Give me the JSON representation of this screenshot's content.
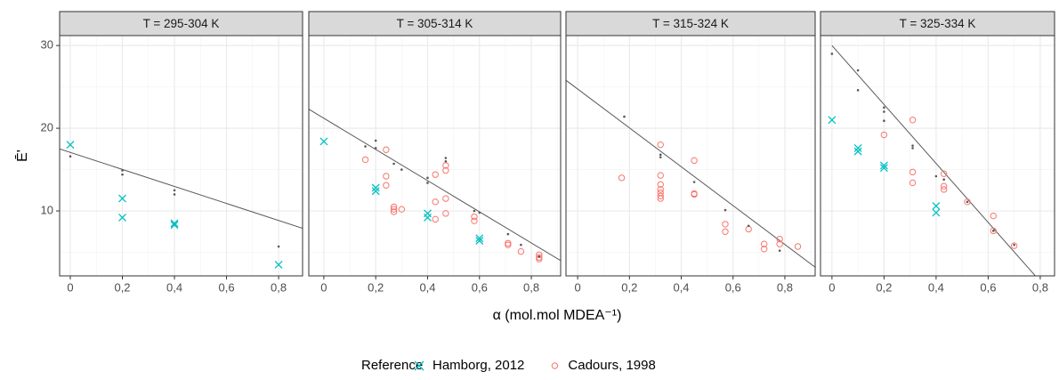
{
  "chart_data": [
    {
      "type": "scatter",
      "title": "T = 295-304 K",
      "xlim": [
        -0.041,
        0.892
      ],
      "ylim": [
        2.15,
        31.2
      ],
      "xticks": [
        {
          "value": 0,
          "label": "0"
        },
        {
          "value": 0.2,
          "label": "0,2"
        },
        {
          "value": 0.4,
          "label": "0,4"
        },
        {
          "value": 0.6,
          "label": "0,6"
        },
        {
          "value": 0.8,
          "label": "0,8"
        }
      ],
      "yticks": [
        10,
        20,
        30
      ],
      "grid": true,
      "series": [
        {
          "name": "Hamborg, 2012",
          "color": "#00BFC4",
          "marker": "x",
          "x": [
            0,
            0.2,
            0.2,
            0.4,
            0.4,
            0.8
          ],
          "values": [
            18.0,
            11.5,
            9.2,
            8.5,
            8.3,
            3.5
          ]
        },
        {
          "color": "#595959",
          "marker": "dot",
          "x": [
            0,
            0.2,
            0.2,
            0.4,
            0.4,
            0.8
          ],
          "values": [
            16.6,
            14.9,
            14.4,
            12.5,
            12.0,
            5.7
          ]
        }
      ],
      "fit_line": {
        "color": "#595959",
        "x": [
          -0.041,
          0.892
        ],
        "values": [
          17.5,
          7.9
        ]
      }
    },
    {
      "type": "scatter",
      "title": "T = 305-314 K",
      "xlim": [
        -0.058,
        0.913
      ],
      "ylim": [
        2.15,
        31.2
      ],
      "xticks": [
        {
          "value": 0,
          "label": "0"
        },
        {
          "value": 0.2,
          "label": "0,2"
        },
        {
          "value": 0.4,
          "label": "0,4"
        },
        {
          "value": 0.6,
          "label": "0,6"
        },
        {
          "value": 0.8,
          "label": "0,8"
        }
      ],
      "yticks": [
        10,
        20,
        30
      ],
      "grid": true,
      "series": [
        {
          "name": "Cadours, 1998",
          "color": "#F8766D",
          "marker": "circle",
          "x": [
            0.16,
            0.24,
            0.24,
            0.24,
            0.27,
            0.27,
            0.27,
            0.3,
            0.43,
            0.43,
            0.43,
            0.47,
            0.47,
            0.47,
            0.47,
            0.58,
            0.58,
            0.71,
            0.71,
            0.76,
            0.83,
            0.83,
            0.83
          ],
          "values": [
            16.2,
            17.4,
            14.2,
            13.1,
            10.5,
            10.2,
            9.9,
            10.2,
            14.4,
            11.1,
            9.0,
            15.5,
            14.9,
            11.5,
            9.7,
            9.3,
            8.8,
            6.1,
            5.9,
            5.1,
            4.7,
            4.4,
            4.2
          ]
        },
        {
          "name": "Hamborg, 2012",
          "color": "#00BFC4",
          "marker": "x",
          "x": [
            0,
            0.2,
            0.2,
            0.4,
            0.4,
            0.6,
            0.6
          ],
          "values": [
            18.4,
            12.8,
            12.4,
            9.7,
            9.2,
            6.7,
            6.4
          ]
        },
        {
          "color": "#595959",
          "marker": "dot",
          "x": [
            0.16,
            0.2,
            0.2,
            0.27,
            0.3,
            0.4,
            0.4,
            0.47,
            0.47,
            0.58,
            0.6,
            0.71,
            0.76,
            0.83
          ],
          "values": [
            17.8,
            18.5,
            17.6,
            15.7,
            15.0,
            14.0,
            13.4,
            16.4,
            16.0,
            10.0,
            9.8,
            7.2,
            5.9,
            4.5
          ]
        }
      ],
      "fit_line": {
        "color": "#595959",
        "x": [
          -0.058,
          0.913
        ],
        "values": [
          22.3,
          4.0
        ]
      }
    },
    {
      "type": "scatter",
      "title": "T = 315-324 K",
      "xlim": [
        -0.045,
        0.917
      ],
      "ylim": [
        2.15,
        31.2
      ],
      "xticks": [
        {
          "value": 0,
          "label": "0"
        },
        {
          "value": 0.2,
          "label": "0,2"
        },
        {
          "value": 0.4,
          "label": "0,4"
        },
        {
          "value": 0.6,
          "label": "0,6"
        },
        {
          "value": 0.8,
          "label": "0,8"
        }
      ],
      "yticks": [
        10,
        20,
        30
      ],
      "grid": true,
      "series": [
        {
          "name": "Cadours, 1998",
          "color": "#F8766D",
          "marker": "circle",
          "x": [
            0.17,
            0.32,
            0.32,
            0.32,
            0.32,
            0.32,
            0.32,
            0.32,
            0.45,
            0.45,
            0.45,
            0.57,
            0.57,
            0.66,
            0.72,
            0.72,
            0.78,
            0.78,
            0.85
          ],
          "values": [
            14.0,
            18.0,
            14.3,
            13.2,
            12.6,
            12.2,
            11.8,
            11.5,
            16.1,
            12.1,
            12.0,
            8.4,
            7.5,
            7.8,
            6.0,
            5.4,
            6.6,
            6.0,
            5.7
          ]
        },
        {
          "color": "#595959",
          "marker": "dot",
          "x": [
            0.18,
            0.32,
            0.32,
            0.45,
            0.57,
            0.66,
            0.78
          ],
          "values": [
            21.4,
            16.8,
            16.5,
            13.5,
            10.1,
            8.2,
            5.2
          ]
        }
      ],
      "fit_line": {
        "color": "#595959",
        "x": [
          -0.045,
          0.917
        ],
        "values": [
          25.8,
          3.2
        ]
      }
    },
    {
      "type": "scatter",
      "title": "T = 325-334 K",
      "xlim": [
        -0.044,
        0.855
      ],
      "ylim": [
        2.15,
        31.2
      ],
      "xticks": [
        {
          "value": 0,
          "label": "0"
        },
        {
          "value": 0.2,
          "label": "0,2"
        },
        {
          "value": 0.4,
          "label": "0,4"
        },
        {
          "value": 0.6,
          "label": "0,6"
        },
        {
          "value": 0.8,
          "label": "0,8"
        }
      ],
      "yticks": [
        10,
        20,
        30
      ],
      "grid": true,
      "series": [
        {
          "name": "Cadours, 1998",
          "color": "#F8766D",
          "marker": "circle",
          "x": [
            0.2,
            0.31,
            0.31,
            0.31,
            0.43,
            0.43,
            0.43,
            0.52,
            0.62,
            0.62,
            0.7
          ],
          "values": [
            19.2,
            21.0,
            14.7,
            13.4,
            14.5,
            13.0,
            12.6,
            11.1,
            9.4,
            7.6,
            5.8
          ]
        },
        {
          "name": "Hamborg, 2012",
          "color": "#00BFC4",
          "marker": "x",
          "x": [
            0,
            0.1,
            0.1,
            0.2,
            0.2,
            0.4,
            0.4
          ],
          "values": [
            21.0,
            17.6,
            17.2,
            15.5,
            15.2,
            10.6,
            9.8
          ]
        },
        {
          "color": "#595959",
          "marker": "dot",
          "x": [
            0,
            0.1,
            0.1,
            0.2,
            0.2,
            0.2,
            0.31,
            0.31,
            0.4,
            0.43,
            0.52,
            0.62,
            0.7
          ],
          "values": [
            29.0,
            27.0,
            24.6,
            22.5,
            22.0,
            20.9,
            17.9,
            17.6,
            14.2,
            13.8,
            11.1,
            7.6,
            5.9
          ]
        }
      ],
      "fit_line": {
        "color": "#595959",
        "x": [
          0,
          0.78
        ],
        "values": [
          30.0,
          2.2
        ]
      }
    }
  ],
  "xlabel": "α (mol.mol MDEA⁻¹)",
  "ylabel": "Ē'",
  "legend_title": "Reference"
}
